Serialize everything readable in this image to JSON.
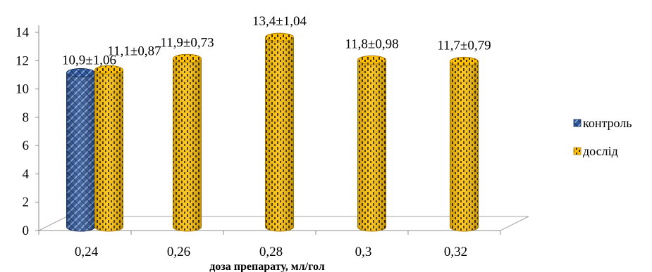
{
  "chart_data": {
    "type": "bar",
    "style": "3d-cylinder",
    "categories": [
      "0,24",
      "0,26",
      "0,28",
      "0,3",
      "0,32"
    ],
    "series": [
      {
        "name": "контроль",
        "color": "#2f5597",
        "pattern": "weave",
        "values": [
          10.9,
          null,
          null,
          null,
          null
        ],
        "labels": [
          "10,9±1,06",
          "",
          "",
          "",
          ""
        ]
      },
      {
        "name": "дослід",
        "color": "#ffc000",
        "pattern": "dots",
        "values": [
          11.1,
          11.9,
          13.4,
          11.8,
          11.7
        ],
        "labels": [
          "11,1±0,87",
          "11,9±0,73",
          "13,4±1,04",
          "11,8±0,98",
          "11,7±0,79"
        ]
      }
    ],
    "title": "",
    "xlabel": "доза препарату, мл/гол",
    "ylabel": "",
    "ylim": [
      0,
      14
    ],
    "yticks": [
      "0",
      "2",
      "4",
      "6",
      "8",
      "10",
      "12",
      "14"
    ],
    "grid": false,
    "legend_position": "right"
  }
}
